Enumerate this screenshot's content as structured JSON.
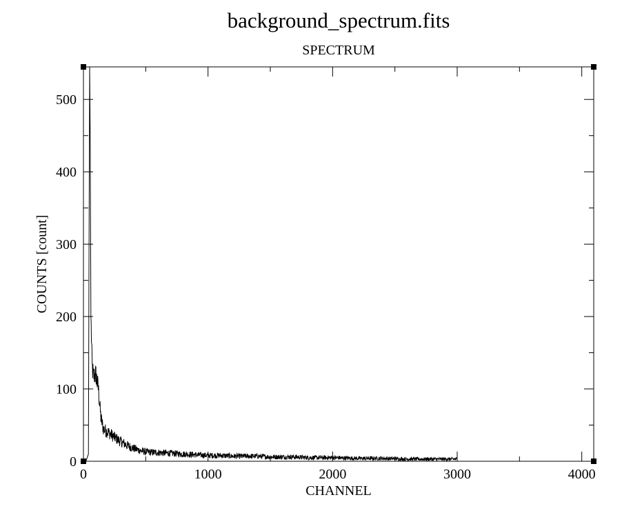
{
  "chart_data": {
    "type": "line",
    "title": "background_spectrum.fits",
    "subtitle": "SPECTRUM",
    "xlabel": "CHANNEL",
    "ylabel": "COUNTS [count]",
    "xlim": [
      0,
      4096
    ],
    "ylim": [
      0,
      545
    ],
    "xticks": [
      0,
      1000,
      2000,
      3000,
      4000
    ],
    "yticks": [
      0,
      100,
      200,
      300,
      400,
      500
    ],
    "grid": false,
    "legend": "none",
    "line_color": "#000000",
    "series": [
      {
        "x": [
          0,
          20,
          30,
          40,
          45,
          50,
          55,
          60,
          70,
          80,
          100,
          120,
          140,
          160,
          180,
          200,
          250,
          300,
          350,
          400,
          450,
          500,
          600,
          700,
          800,
          900,
          1000,
          1100,
          1200,
          1300,
          1400,
          1500,
          1600,
          1700,
          1800,
          1900,
          2000,
          2200,
          2400,
          2600,
          2800,
          3000
        ],
        "values": [
          0,
          0,
          5,
          10,
          300,
          545,
          430,
          200,
          130,
          118,
          120,
          100,
          60,
          45,
          42,
          40,
          33,
          27,
          22,
          18,
          15,
          13,
          12,
          11,
          10,
          9,
          8,
          8,
          7,
          7,
          7,
          6,
          6,
          6,
          5,
          5,
          5,
          4,
          4,
          3,
          3,
          3
        ]
      }
    ]
  }
}
